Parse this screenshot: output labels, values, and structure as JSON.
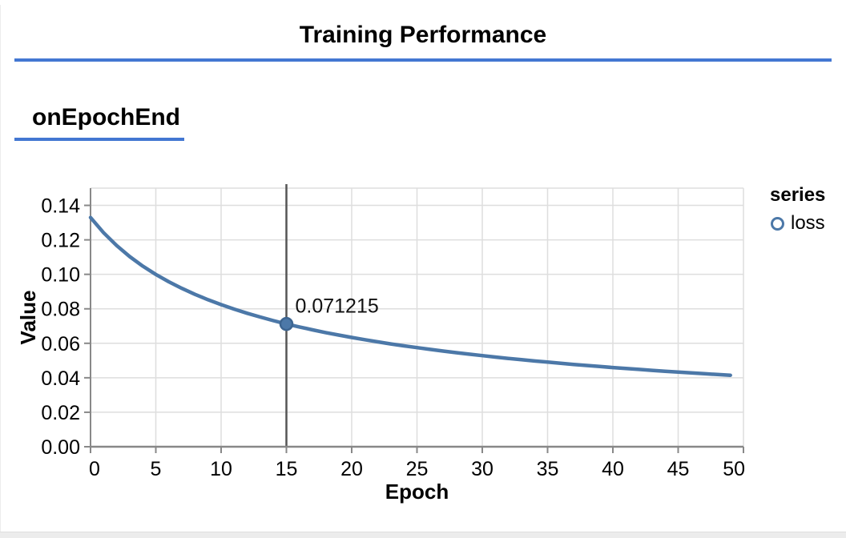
{
  "header": {
    "title": "Training Performance"
  },
  "section": {
    "heading": "onEpochEnd"
  },
  "legend": {
    "title": "series",
    "items": [
      {
        "label": "loss",
        "color": "#4c78a8"
      }
    ]
  },
  "colors": {
    "accent_rule": "#4377d2",
    "line": "#4c78a8",
    "point_stroke": "#3d6591",
    "grid": "#dedede",
    "axis": "#888888",
    "crosshair": "#555555",
    "divider": "#ececec"
  },
  "chart_data": {
    "type": "line",
    "title": "onEpochEnd",
    "xlabel": "Epoch",
    "ylabel": "Value",
    "xlim": [
      0,
      50
    ],
    "ylim": [
      0,
      0.15
    ],
    "grid": true,
    "legend_position": "right",
    "x_ticks": [
      "0",
      "5",
      "10",
      "15",
      "20",
      "25",
      "30",
      "35",
      "40",
      "45",
      "50"
    ],
    "y_ticks": [
      "0.00",
      "0.02",
      "0.04",
      "0.06",
      "0.08",
      "0.10",
      "0.12",
      "0.14"
    ],
    "series": [
      {
        "name": "loss",
        "color": "#4c78a8",
        "x": [
          0,
          1,
          2,
          3,
          4,
          5,
          6,
          7,
          8,
          9,
          10,
          11,
          12,
          13,
          14,
          15,
          16,
          17,
          18,
          19,
          20,
          21,
          22,
          23,
          24,
          25,
          26,
          27,
          28,
          29,
          30,
          31,
          32,
          33,
          34,
          35,
          36,
          37,
          38,
          39,
          40,
          41,
          42,
          43,
          44,
          45,
          46,
          47,
          48,
          49
        ],
        "values": [
          0.13295,
          0.12411,
          0.11668,
          0.1103,
          0.10478,
          0.09995,
          0.09566,
          0.09184,
          0.08839,
          0.08527,
          0.08243,
          0.07982,
          0.07743,
          0.07522,
          0.07316,
          0.071215,
          0.06948,
          0.06781,
          0.06624,
          0.06477,
          0.06338,
          0.06207,
          0.06083,
          0.05965,
          0.05853,
          0.05747,
          0.05646,
          0.05549,
          0.05456,
          0.05368,
          0.05283,
          0.05202,
          0.05124,
          0.05048,
          0.04976,
          0.04907,
          0.0484,
          0.04776,
          0.04713,
          0.04653,
          0.04595,
          0.04539,
          0.04484,
          0.04431,
          0.0438,
          0.0433,
          0.04283,
          0.04236,
          0.0419,
          0.04146
        ]
      }
    ],
    "annotation": {
      "x": 15,
      "y": 0.071215,
      "label": "0.071215",
      "crosshair_color": "#555555"
    }
  }
}
